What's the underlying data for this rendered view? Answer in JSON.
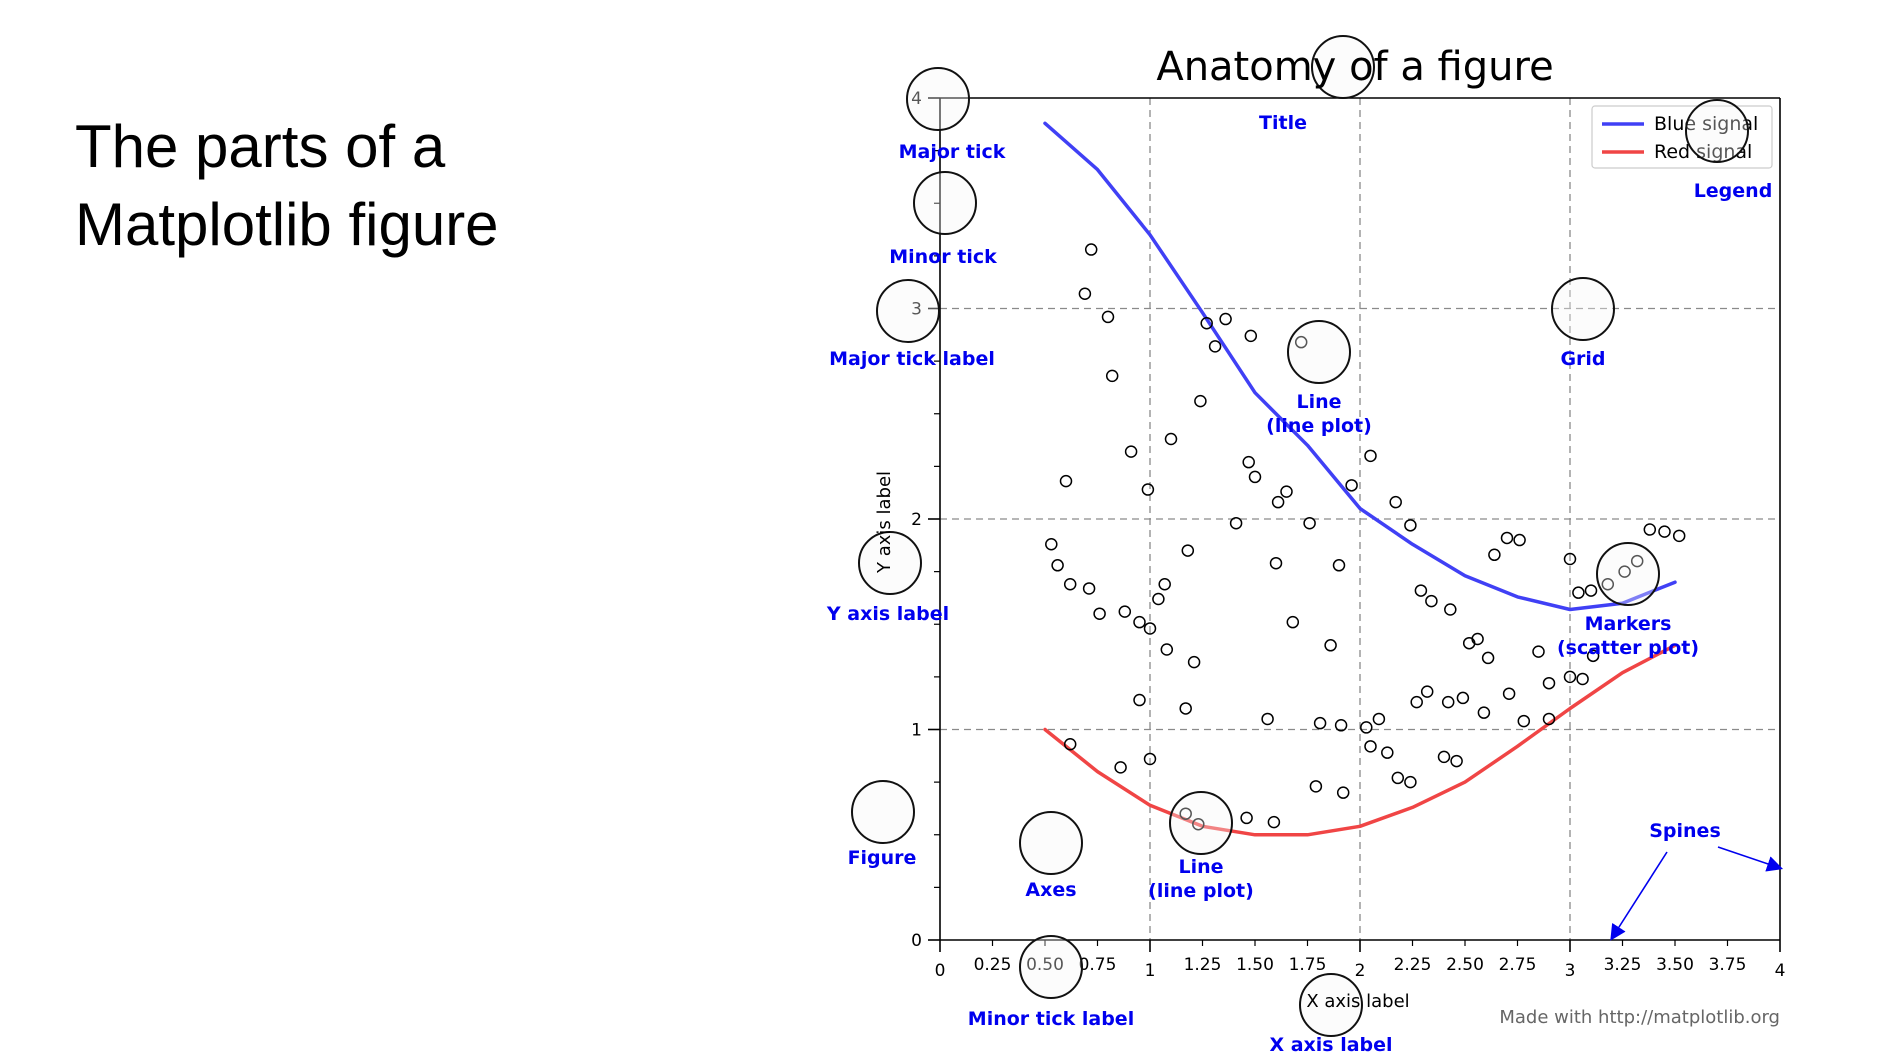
{
  "slide": {
    "title": "The parts of a Matplotlib figure"
  },
  "colors": {
    "annotation": "#0000ee",
    "blue_line": "#4040f5",
    "red_line": "#f04545",
    "grid": "#8a8a8a",
    "circle_fill": "#f7f7f7"
  },
  "chart_data": {
    "type": "line",
    "title": "Anatomy of a figure",
    "xlabel": "X axis label",
    "ylabel": "Y axis label",
    "xlim": [
      0,
      4
    ],
    "ylim": [
      0,
      4
    ],
    "grid": true,
    "legend_position": "top-right",
    "x_major_ticks": [
      0,
      1,
      2,
      3,
      4
    ],
    "x_minor_ticks": [
      0.25,
      0.5,
      0.75,
      1.25,
      1.5,
      1.75,
      2.25,
      2.5,
      2.75,
      3.25,
      3.5,
      3.75
    ],
    "x_major_tick_labels": [
      "0",
      "1",
      "2",
      "3",
      "4"
    ],
    "x_minor_tick_labels": [
      "0.25",
      "0.50",
      "0.75",
      "1.25",
      "1.50",
      "1.75",
      "2.25",
      "2.50",
      "2.75",
      "3.25",
      "3.50",
      "3.75"
    ],
    "y_major_ticks": [
      0,
      1,
      2,
      3,
      4
    ],
    "y_minor_ticks": [
      0.25,
      0.5,
      0.75,
      1.25,
      1.5,
      1.75,
      2.25,
      2.5,
      2.75,
      3.25,
      3.5,
      3.75
    ],
    "y_major_tick_labels": [
      "0",
      "1",
      "2",
      "3",
      "4"
    ],
    "series": [
      {
        "name": "Blue signal",
        "kind": "line",
        "color": "#4040f5",
        "x": [
          0.5,
          0.75,
          1.0,
          1.25,
          1.5,
          1.75,
          2.0,
          2.25,
          2.5,
          2.75,
          3.0,
          3.25,
          3.5
        ],
        "y": [
          3.88,
          3.66,
          3.35,
          2.98,
          2.6,
          2.35,
          2.05,
          1.88,
          1.73,
          1.63,
          1.57,
          1.6,
          1.7
        ]
      },
      {
        "name": "Red signal",
        "kind": "line",
        "color": "#f04545",
        "x": [
          0.5,
          0.75,
          1.0,
          1.25,
          1.5,
          1.75,
          2.0,
          2.25,
          2.5,
          2.75,
          3.0,
          3.25,
          3.5
        ],
        "y": [
          1.0,
          0.8,
          0.64,
          0.54,
          0.5,
          0.5,
          0.54,
          0.63,
          0.75,
          0.92,
          1.1,
          1.27,
          1.4
        ]
      },
      {
        "name": "scatter",
        "kind": "scatter",
        "points": [
          [
            0.72,
            3.28
          ],
          [
            0.69,
            3.07
          ],
          [
            0.8,
            2.96
          ],
          [
            0.82,
            2.68
          ],
          [
            0.6,
            2.18
          ],
          [
            0.53,
            1.88
          ],
          [
            0.56,
            1.78
          ],
          [
            0.62,
            1.69
          ],
          [
            0.71,
            1.67
          ],
          [
            0.76,
            1.55
          ],
          [
            0.88,
            1.56
          ],
          [
            0.95,
            1.51
          ],
          [
            0.91,
            2.32
          ],
          [
            0.99,
            2.14
          ],
          [
            1.1,
            2.38
          ],
          [
            1.07,
            1.69
          ],
          [
            1.04,
            1.62
          ],
          [
            1.0,
            1.48
          ],
          [
            1.18,
            1.85
          ],
          [
            1.24,
            2.56
          ],
          [
            1.27,
            2.93
          ],
          [
            1.31,
            2.82
          ],
          [
            1.36,
            2.95
          ],
          [
            1.48,
            2.87
          ],
          [
            1.72,
            2.84
          ],
          [
            1.41,
            1.98
          ],
          [
            1.47,
            2.27
          ],
          [
            1.5,
            2.2
          ],
          [
            1.61,
            2.08
          ],
          [
            1.65,
            2.13
          ],
          [
            1.76,
            1.98
          ],
          [
            1.6,
            1.79
          ],
          [
            1.68,
            1.51
          ],
          [
            1.86,
            1.4
          ],
          [
            1.9,
            1.78
          ],
          [
            1.96,
            2.16
          ],
          [
            2.05,
            2.3
          ],
          [
            2.17,
            2.08
          ],
          [
            2.24,
            1.97
          ],
          [
            2.29,
            1.66
          ],
          [
            2.34,
            1.61
          ],
          [
            2.43,
            1.57
          ],
          [
            2.52,
            1.41
          ],
          [
            2.56,
            1.43
          ],
          [
            2.61,
            1.34
          ],
          [
            2.64,
            1.83
          ],
          [
            2.7,
            1.91
          ],
          [
            2.76,
            1.9
          ],
          [
            2.85,
            1.37
          ],
          [
            2.9,
            1.22
          ],
          [
            3.0,
            1.81
          ],
          [
            3.04,
            1.65
          ],
          [
            3.1,
            1.66
          ],
          [
            3.18,
            1.69
          ],
          [
            3.26,
            1.75
          ],
          [
            3.32,
            1.8
          ],
          [
            3.38,
            1.95
          ],
          [
            3.45,
            1.94
          ],
          [
            3.52,
            1.92
          ],
          [
            3.0,
            1.25
          ],
          [
            3.06,
            1.24
          ],
          [
            3.11,
            1.35
          ],
          [
            2.9,
            1.05
          ],
          [
            2.78,
            1.04
          ],
          [
            2.71,
            1.17
          ],
          [
            2.59,
            1.08
          ],
          [
            2.49,
            1.15
          ],
          [
            2.42,
            1.13
          ],
          [
            2.32,
            1.18
          ],
          [
            2.27,
            1.13
          ],
          [
            2.09,
            1.05
          ],
          [
            2.03,
            1.01
          ],
          [
            1.91,
            1.02
          ],
          [
            1.81,
            1.03
          ],
          [
            1.56,
            1.05
          ],
          [
            1.17,
            1.1
          ],
          [
            1.21,
            1.32
          ],
          [
            1.08,
            1.38
          ],
          [
            0.95,
            1.14
          ],
          [
            0.62,
            0.93
          ],
          [
            0.86,
            0.82
          ],
          [
            1.0,
            0.86
          ],
          [
            1.46,
            0.58
          ],
          [
            1.59,
            0.56
          ],
          [
            1.79,
            0.73
          ],
          [
            1.92,
            0.7
          ],
          [
            2.05,
            0.92
          ],
          [
            2.13,
            0.89
          ],
          [
            2.18,
            0.77
          ],
          [
            2.24,
            0.75
          ],
          [
            2.4,
            0.87
          ],
          [
            2.46,
            0.85
          ],
          [
            1.17,
            0.6
          ],
          [
            1.23,
            0.55
          ]
        ]
      }
    ],
    "credit": "Made with http://matplotlib.org"
  },
  "annotations": [
    {
      "id": "title",
      "label": "Title"
    },
    {
      "id": "major-tick",
      "label": "Major tick"
    },
    {
      "id": "minor-tick",
      "label": "Minor tick"
    },
    {
      "id": "major-tick-label",
      "label": "Major tick label"
    },
    {
      "id": "grid",
      "label": "Grid"
    },
    {
      "id": "legend",
      "label": "Legend"
    },
    {
      "id": "line-upper",
      "label": "Line",
      "sublabel": "(line plot)"
    },
    {
      "id": "y-axis-label",
      "label": "Y axis label"
    },
    {
      "id": "markers",
      "label": "Markers",
      "sublabel": "(scatter plot)"
    },
    {
      "id": "figure",
      "label": "Figure"
    },
    {
      "id": "axes",
      "label": "Axes"
    },
    {
      "id": "line-lower",
      "label": "Line",
      "sublabel": "(line plot)"
    },
    {
      "id": "spines",
      "label": "Spines"
    },
    {
      "id": "minor-tick-label",
      "label": "Minor tick label"
    },
    {
      "id": "x-axis-label",
      "label": "X axis label"
    }
  ]
}
